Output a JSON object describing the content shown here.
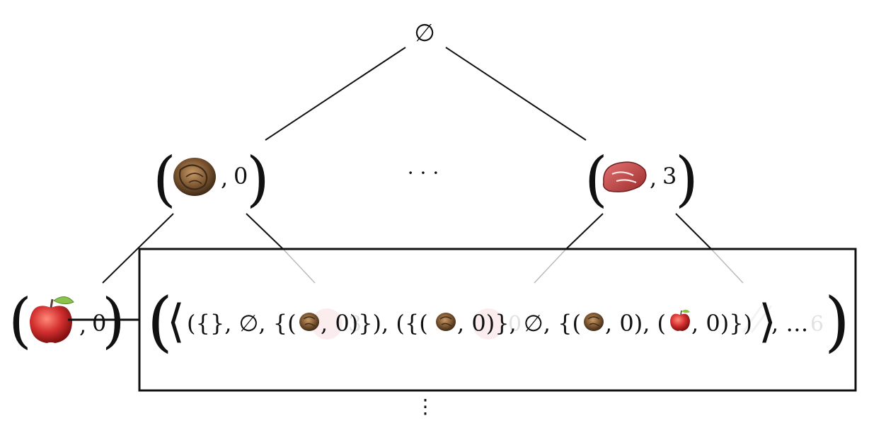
{
  "root": {
    "label": "∅"
  },
  "level1": {
    "left": {
      "open": "(",
      "sep": ",",
      "value": "0",
      "close": ")",
      "icon": "walnut-icon"
    },
    "middle": {
      "label": "· · ·"
    },
    "right": {
      "open": "(",
      "sep": ",",
      "value": "3",
      "close": ")",
      "icon": "steak-icon"
    }
  },
  "level2": {
    "left": {
      "open": "(",
      "sep": ",",
      "value": "0",
      "close": ")",
      "icon": "apple-icon"
    },
    "hidden_values": [
      "3",
      "0",
      "6"
    ]
  },
  "box": {
    "outer_open": "(",
    "angle_open": "⟨",
    "text_a": "({}, ∅, {(",
    "num_a": ", 0)}), ({(",
    "num_b": ", 0)}, ∅, {(",
    "num_c": ", 0), (",
    "num_d": ", 0)})",
    "angle_close": "⟩",
    "tail": ", …",
    "outer_close": ")",
    "icons": [
      "walnut-icon",
      "walnut-icon",
      "walnut-icon",
      "apple-icon"
    ]
  },
  "bottom": {
    "label": "⋮"
  },
  "colors": {
    "line": "#111111",
    "walnut": "#6b4a2b",
    "apple": "#c62828",
    "steak": "#b23a3a"
  }
}
